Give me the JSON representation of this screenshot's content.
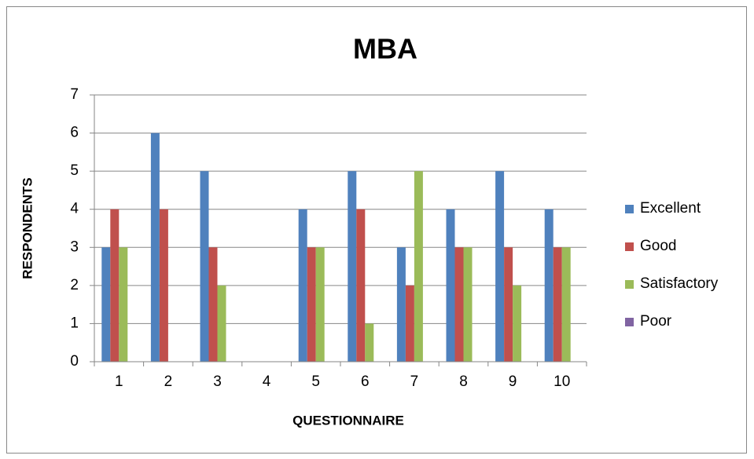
{
  "chart_data": {
    "type": "bar",
    "title": "MBA",
    "x_label": "QUESTIONNAIRE",
    "y_label": "RESPONDENTS",
    "categories": [
      "1",
      "2",
      "3",
      "4",
      "5",
      "6",
      "7",
      "8",
      "9",
      "10"
    ],
    "series": [
      {
        "name": "Excellent",
        "color": "#4f81bd",
        "values": [
          3,
          6,
          5,
          0,
          4,
          5,
          3,
          4,
          5,
          4
        ]
      },
      {
        "name": "Good",
        "color": "#c0504d",
        "values": [
          4,
          4,
          3,
          0,
          3,
          4,
          2,
          3,
          3,
          3
        ]
      },
      {
        "name": "Satisfactory",
        "color": "#9bbb59",
        "values": [
          3,
          0,
          2,
          0,
          3,
          1,
          5,
          3,
          2,
          3
        ]
      },
      {
        "name": "Poor",
        "color": "#8064a2",
        "values": [
          0,
          0,
          0,
          0,
          0,
          0,
          0,
          0,
          0,
          0
        ]
      }
    ],
    "ylim": [
      0,
      7
    ],
    "yticks": [
      0,
      1,
      2,
      3,
      4,
      5,
      6,
      7
    ],
    "grid": true,
    "legend": "right"
  }
}
